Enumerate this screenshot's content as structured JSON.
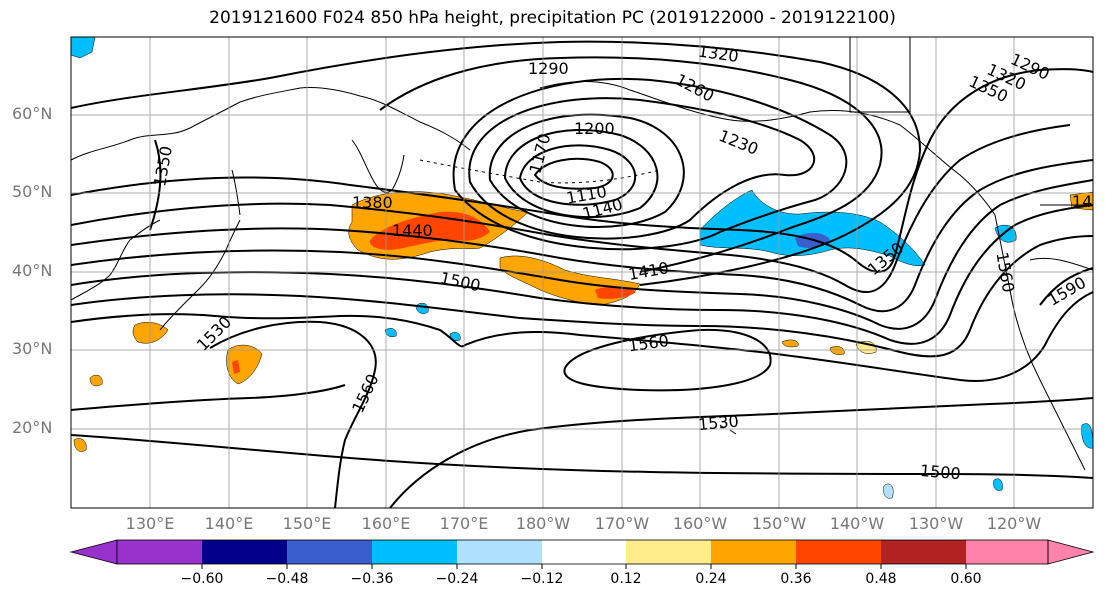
{
  "title": "2019121600 F024 850 hPa height, precipitation PC (2019122000 - 2019122100)",
  "map": {
    "region": "North Pacific",
    "projection": "cylindrical",
    "grid": true,
    "lat_labels": [
      "60°N",
      "50°N",
      "40°N",
      "30°N",
      "20°N"
    ],
    "lon_labels": [
      "130°E",
      "140°E",
      "150°E",
      "160°E",
      "170°E",
      "180°W",
      "170°W",
      "160°W",
      "150°W",
      "140°W",
      "130°W",
      "120°W"
    ],
    "contour_labels": [
      "1320",
      "1290",
      "1290",
      "1320",
      "1350",
      "1260",
      "1200",
      "1230",
      "1350",
      "1170",
      "1110",
      "1140",
      "1380",
      "1440",
      "1410",
      "1500",
      "1350",
      "1560",
      "1590",
      "1530",
      "1560",
      "1560",
      "1530",
      "1500",
      "14"
    ],
    "contour_levels_note": "850 hPa geopotential height (m), 30 m interval"
  },
  "colorbar": {
    "ticks": [
      "−0.60",
      "−0.48",
      "−0.36",
      "−0.24",
      "−0.12",
      "0.12",
      "0.24",
      "0.36",
      "0.48",
      "0.60"
    ],
    "colors": [
      "#9932cc",
      "#00008b",
      "#3a5fcd",
      "#00bfff",
      "#b0e2ff",
      "#ffffff",
      "#ffec8b",
      "#ffa500",
      "#ff4500",
      "#b22222",
      "#ff82ab"
    ]
  }
}
